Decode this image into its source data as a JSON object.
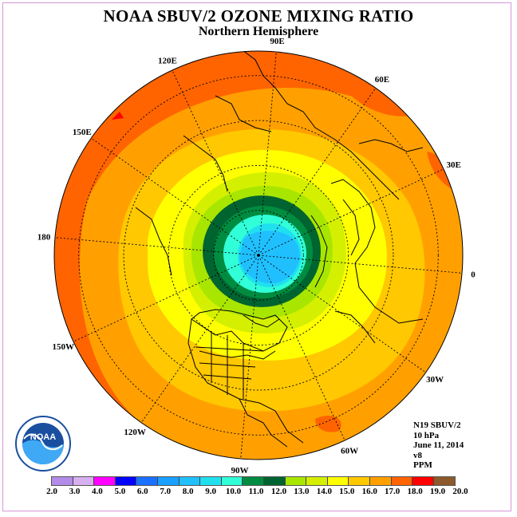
{
  "title": "NOAA SBUV/2 OZONE MIXING RATIO",
  "subtitle": "Northern Hemisphere",
  "longitude_labels": [
    "90E",
    "60E",
    "30E",
    "0",
    "30W",
    "60W",
    "90W",
    "120W",
    "150W",
    "180",
    "150E",
    "120E"
  ],
  "info": {
    "instrument": "N19 SBUV/2",
    "level": "10 hPa",
    "date": "June 11, 2014",
    "version": "v8",
    "units": "PPM"
  },
  "colorbar": {
    "ticks": [
      "2.0",
      "3.0",
      "4.0",
      "5.0",
      "6.0",
      "7.0",
      "8.0",
      "9.0",
      "10.0",
      "11.0",
      "12.0",
      "13.0",
      "14.0",
      "15.0",
      "16.0",
      "17.0",
      "18.0",
      "19.0",
      "20.0"
    ],
    "colors": [
      "#b28ce8",
      "#d8b0f0",
      "#ff00ff",
      "#0000ff",
      "#1a70ff",
      "#1aa0ff",
      "#20c0ff",
      "#20e0f0",
      "#30ffd8",
      "#008c40",
      "#006430",
      "#a8e600",
      "#d4f000",
      "#ffff00",
      "#ffc800",
      "#ffa000",
      "#ff6400",
      "#ff0000",
      "#8c5a2c"
    ]
  },
  "logo_text": "NOAA"
}
